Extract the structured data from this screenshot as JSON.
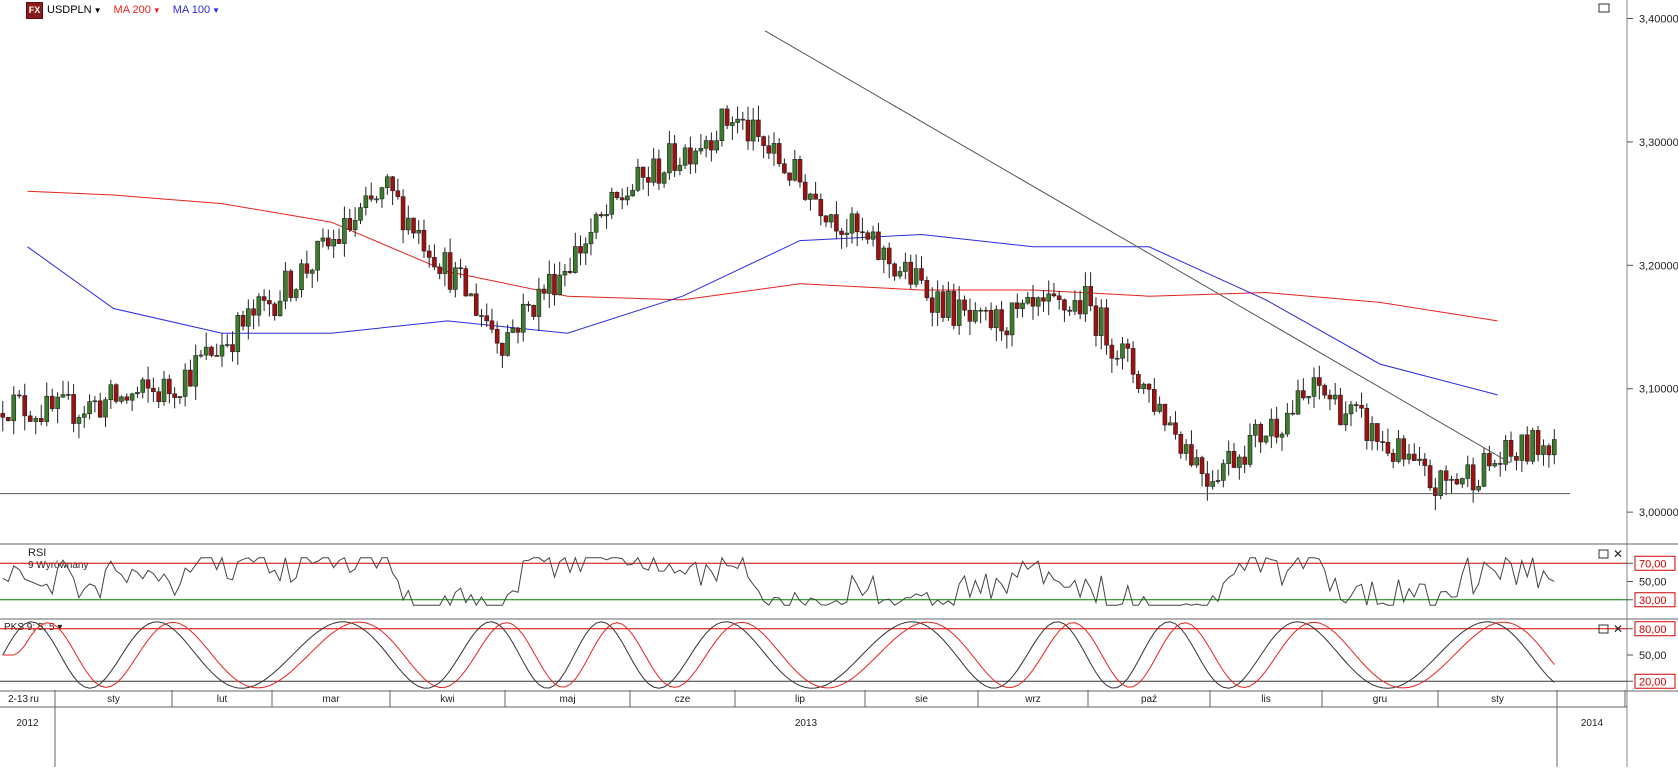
{
  "header": {
    "symbol": "USDPLN",
    "indicators": [
      {
        "label": "MA 200",
        "color": "#e8221d"
      },
      {
        "label": "MA 100",
        "color": "#2a2ae0"
      }
    ]
  },
  "colors": {
    "up": "#3a7d2a",
    "down": "#a01010",
    "ma200": "#e8221d",
    "ma100": "#2a2ae0",
    "rsi_line": "#444444",
    "upper_band": "#d00000",
    "lower_band": "#008000",
    "pks_slow": "#e8221d"
  },
  "price_axis": {
    "ticks": [
      {
        "v": 3.4,
        "label": "3,40000"
      },
      {
        "v": 3.3,
        "label": "3,30000"
      },
      {
        "v": 3.2,
        "label": "3,20000"
      },
      {
        "v": 3.1,
        "label": "3,10000"
      },
      {
        "v": 3.0,
        "label": "3,00000"
      }
    ]
  },
  "rsi_panel": {
    "title": "RSI",
    "subtitle": "9 Wyrównany",
    "ticks": [
      {
        "v": 70,
        "label": "70,00"
      },
      {
        "v": 50,
        "label": "50,00"
      },
      {
        "v": 30,
        "label": "30,00"
      }
    ]
  },
  "pks_panel": {
    "title": "PKS 9; 5; 5",
    "ticks": [
      {
        "v": 80,
        "label": "80,00"
      },
      {
        "v": 50,
        "label": "50,00"
      },
      {
        "v": 20,
        "label": "20,00"
      }
    ]
  },
  "time_axis": {
    "months": [
      "2-13",
      "ru",
      "sty",
      "lut",
      "mar",
      "kwi",
      "maj",
      "cze",
      "lip",
      "sie",
      "wrz",
      "paź",
      "lis",
      "gru",
      "sty"
    ],
    "years": [
      "2012",
      "2013",
      "2014"
    ]
  },
  "chart_data": {
    "type": "candlestick",
    "title": "USDPLN",
    "y_range": [
      2.975,
      3.415
    ],
    "horizontal_support": 3.015,
    "trendline": {
      "from": {
        "date": "2013-07-01",
        "value": 3.39
      },
      "to": {
        "date": "2014-01-24",
        "value": 3.04
      }
    },
    "monthly_closes": [
      {
        "month": "2012-12",
        "close": 3.08
      },
      {
        "month": "2013-01",
        "close": 3.1
      },
      {
        "month": "2013-02",
        "close": 3.17
      },
      {
        "month": "2013-03",
        "close": 3.26
      },
      {
        "month": "2013-04",
        "close": 3.14
      },
      {
        "month": "2013-05",
        "close": 3.26
      },
      {
        "month": "2013-06",
        "close": 3.32
      },
      {
        "month": "2013-07",
        "close": 3.22
      },
      {
        "month": "2013-08",
        "close": 3.15
      },
      {
        "month": "2013-09",
        "close": 3.17
      },
      {
        "month": "2013-10",
        "close": 3.03
      },
      {
        "month": "2013-11",
        "close": 3.1
      },
      {
        "month": "2013-12",
        "close": 3.02
      },
      {
        "month": "2014-01",
        "close": 3.06
      }
    ],
    "series": [
      {
        "name": "MA 200",
        "values": [
          3.26,
          3.257,
          3.25,
          3.235,
          3.195,
          3.175,
          3.172,
          3.185,
          3.18,
          3.18,
          3.175,
          3.178,
          3.17,
          3.155
        ]
      },
      {
        "name": "MA 100",
        "values": [
          3.215,
          3.165,
          3.145,
          3.145,
          3.155,
          3.145,
          3.175,
          3.22,
          3.225,
          3.215,
          3.215,
          3.172,
          3.12,
          3.095
        ]
      }
    ],
    "rsi": {
      "upper": 70,
      "lower": 30
    },
    "pks": {
      "upper": 80,
      "lower": 20
    }
  }
}
